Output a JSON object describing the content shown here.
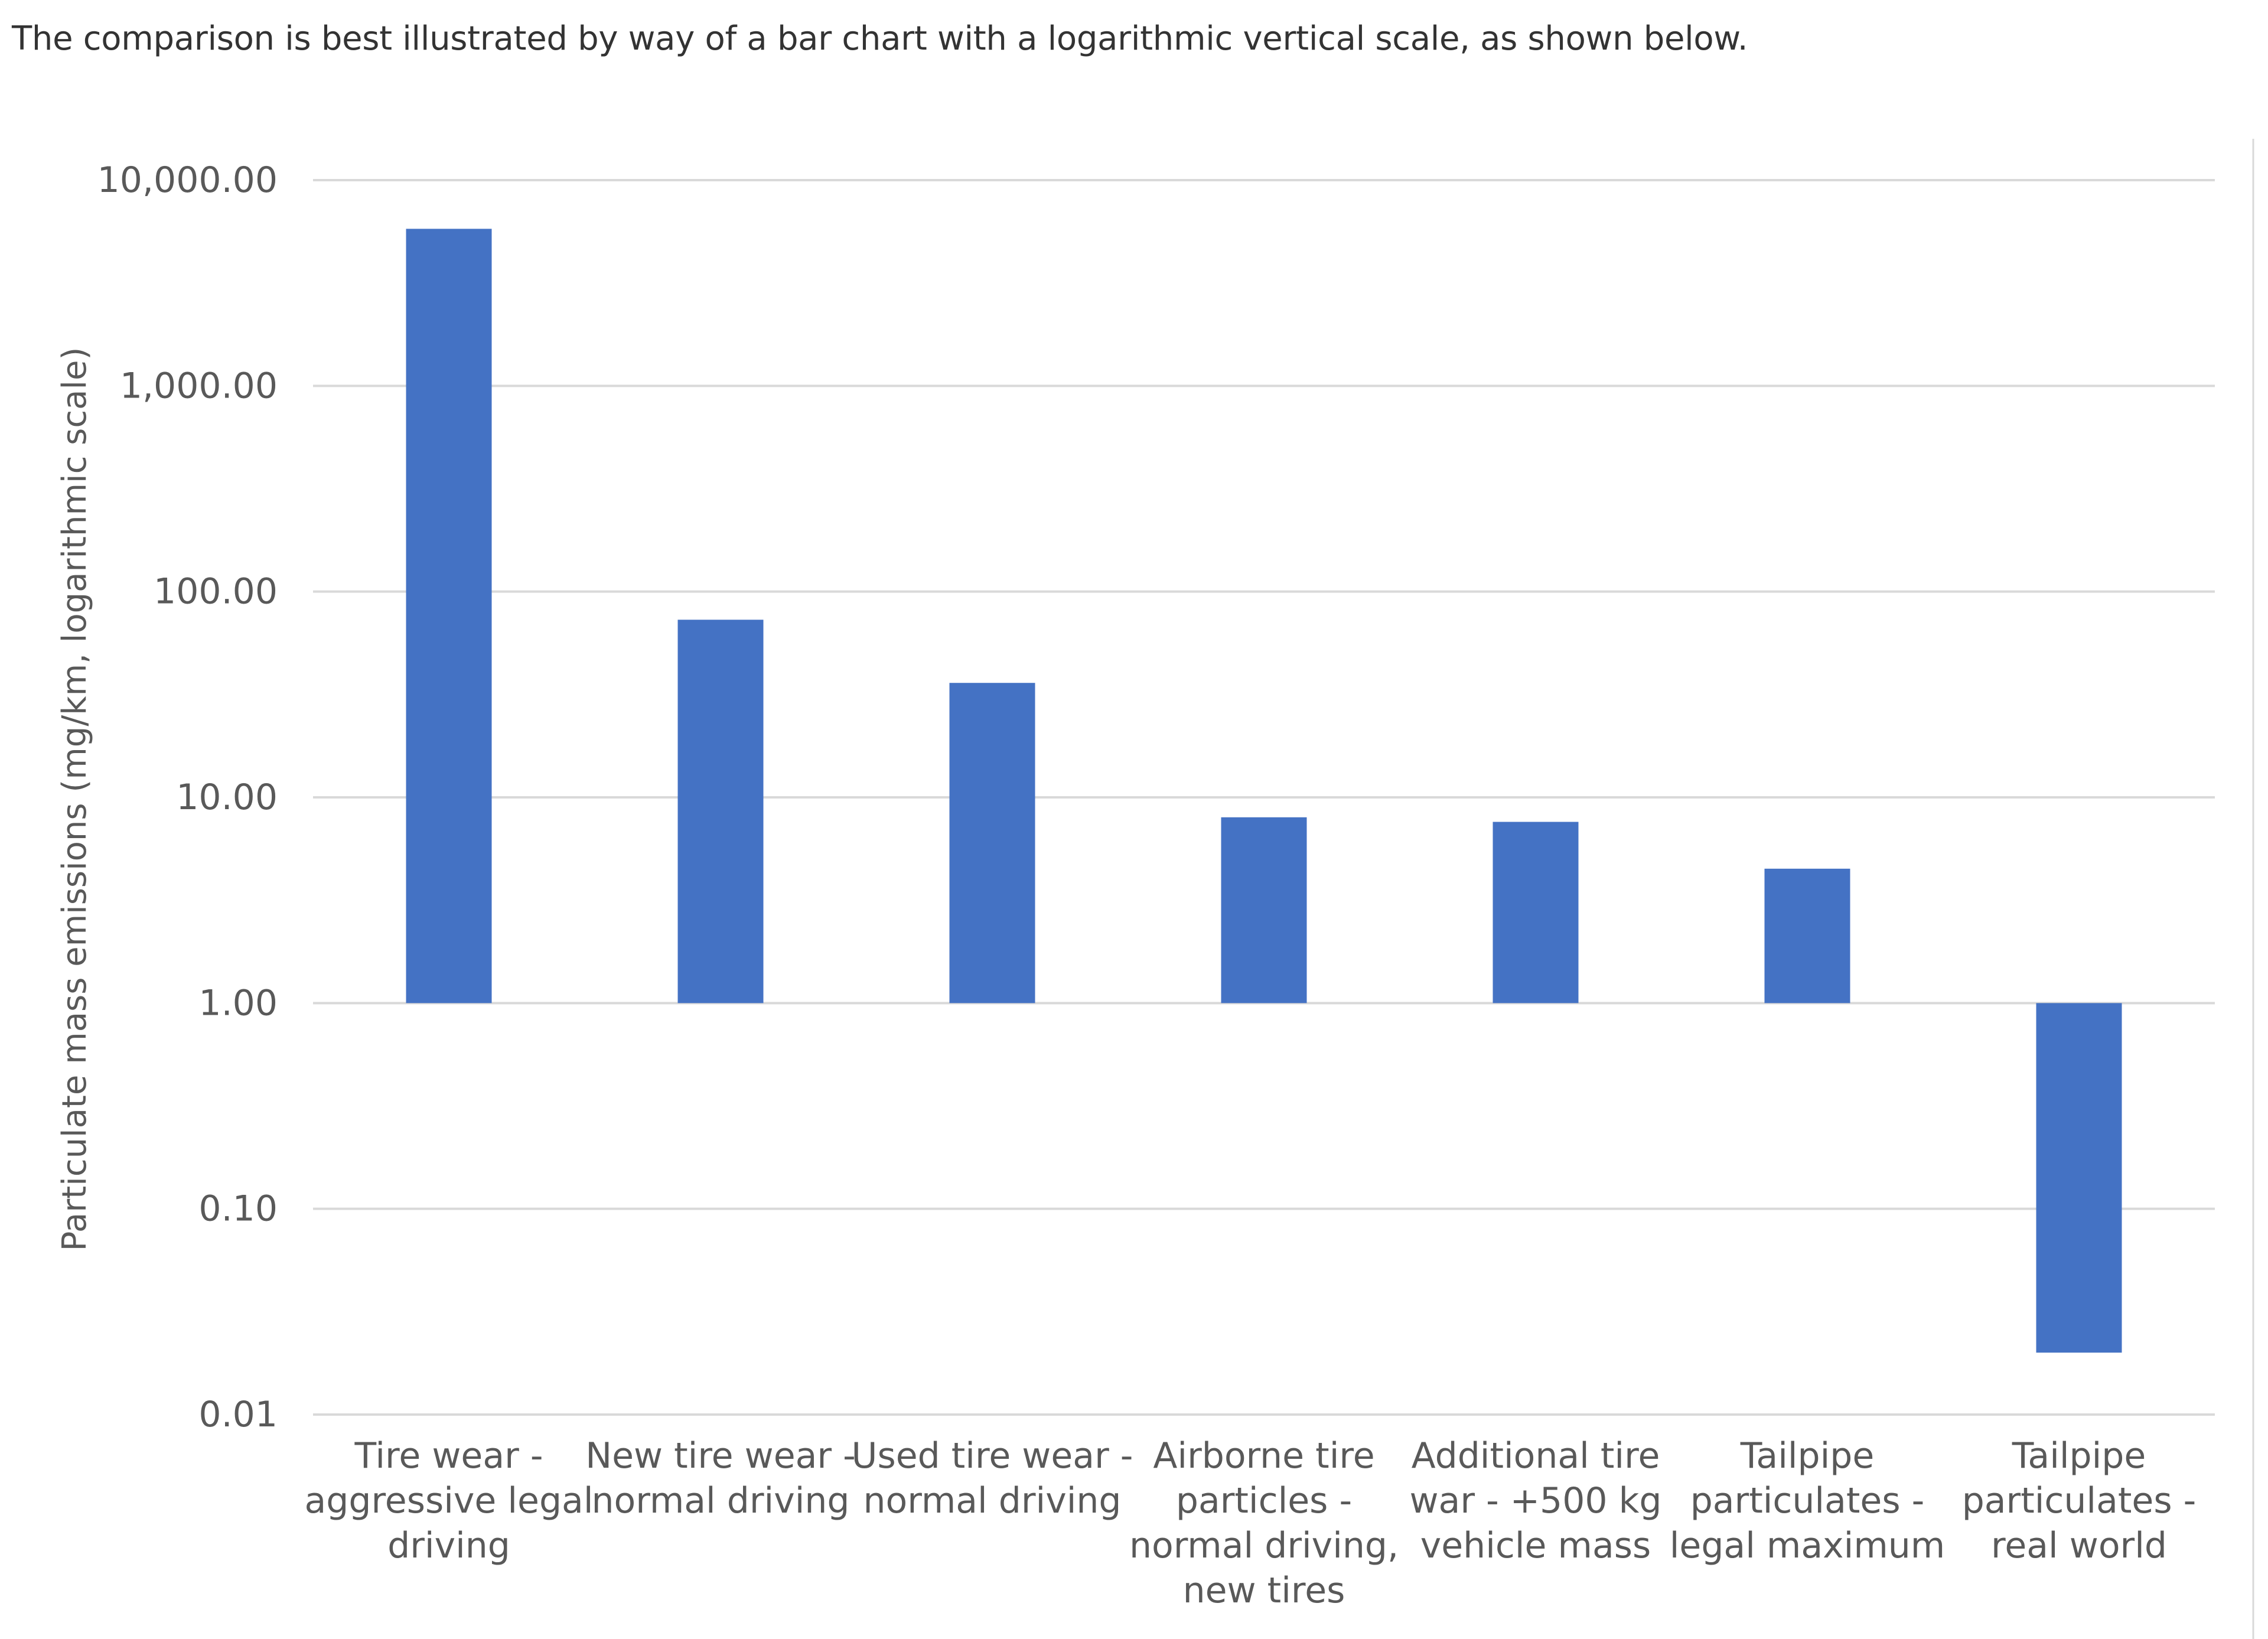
{
  "intro_text": "The comparison is best illustrated by way of a bar chart with a logarithmic vertical scale, as shown below.",
  "colors": {
    "bar": "#4472C4",
    "gridline": "#D9D9D9",
    "text": "#595959",
    "frame": "#D9D9D9"
  },
  "chart_data": {
    "type": "bar",
    "title": "",
    "xlabel": "",
    "ylabel": "Particulate mass emissions (mg/km, logarithmic scale)",
    "yscale": "log",
    "ylim": [
      0.01,
      10000
    ],
    "baseline": 1,
    "grid": true,
    "ticks": [
      {
        "value": 10000,
        "label": "10,000.00"
      },
      {
        "value": 1000,
        "label": "1,000.00"
      },
      {
        "value": 100,
        "label": "100.00"
      },
      {
        "value": 10,
        "label": "10.00"
      },
      {
        "value": 1,
        "label": "1.00"
      },
      {
        "value": 0.1,
        "label": "0.10"
      },
      {
        "value": 0.01,
        "label": "0.01"
      }
    ],
    "categories": [
      {
        "lines": [
          "Tire wear -",
          "aggressive legal",
          "driving"
        ]
      },
      {
        "lines": [
          "New tire wear -",
          "normal driving"
        ]
      },
      {
        "lines": [
          "Used tire wear -",
          "normal driving"
        ]
      },
      {
        "lines": [
          "Airborne tire",
          "particles -",
          "normal driving,",
          "new tires"
        ]
      },
      {
        "lines": [
          "Additional tire",
          "war - +500 kg",
          "vehicle mass"
        ]
      },
      {
        "lines": [
          "Tailpipe",
          "particulates -",
          "legal maximum"
        ]
      },
      {
        "lines": [
          "Tailpipe",
          "particulates -",
          "real world"
        ]
      }
    ],
    "values": [
      5800,
      73,
      36,
      8,
      7.6,
      4.5,
      0.02
    ]
  }
}
